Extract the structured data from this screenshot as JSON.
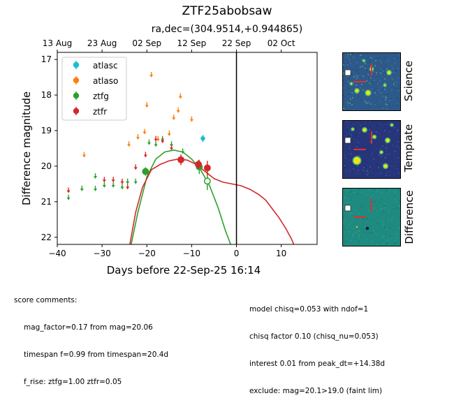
{
  "title": "ZTF25abobsaw",
  "subtitle": "ra,dec=(304.9514,+0.944865)",
  "chart_data": {
    "type": "scatter",
    "xlabel": "Days before 22-Sep-25 16:14",
    "ylabel": "Difference magnitude",
    "xlim": [
      -40,
      18
    ],
    "ylim": [
      22.2,
      16.8
    ],
    "x_ticks": [
      -40,
      -30,
      -20,
      -10,
      0,
      10
    ],
    "y_ticks": [
      17,
      18,
      19,
      20,
      21,
      22
    ],
    "top_axis_ticks": [
      {
        "label": "13 Aug",
        "x": -40
      },
      {
        "label": "23 Aug",
        "x": -30
      },
      {
        "label": "02 Sep",
        "x": -20
      },
      {
        "label": "12 Sep",
        "x": -10
      },
      {
        "label": "22 Sep",
        "x": 0
      },
      {
        "label": "02 Oct",
        "x": 10
      }
    ],
    "vline_x": 0,
    "legend_position": "upper-left",
    "series": [
      {
        "name": "atlasc",
        "color": "#17becf",
        "detections": [
          {
            "x": -7.5,
            "y": 19.22,
            "err": 0.1
          }
        ],
        "upper_limits": []
      },
      {
        "name": "atlaso",
        "color": "#ff7f0e",
        "detections": [],
        "upper_limits": [
          {
            "x": -34,
            "y": 19.6
          },
          {
            "x": -24,
            "y": 19.3
          },
          {
            "x": -22,
            "y": 19.1
          },
          {
            "x": -20.5,
            "y": 18.95
          },
          {
            "x": -20,
            "y": 18.2
          },
          {
            "x": -19,
            "y": 17.35
          },
          {
            "x": -17.5,
            "y": 19.15
          },
          {
            "x": -15,
            "y": 19.0
          },
          {
            "x": -14,
            "y": 18.55
          },
          {
            "x": -13,
            "y": 18.35
          },
          {
            "x": -12.5,
            "y": 17.95
          },
          {
            "x": -10,
            "y": 18.6
          }
        ]
      },
      {
        "name": "ztfg",
        "color": "#2ca02c",
        "detections": [
          {
            "x": -20.3,
            "y": 20.15,
            "err": 0.12
          },
          {
            "x": -8.3,
            "y": 20.02,
            "err": 0.2
          },
          {
            "x": -6.5,
            "y": 20.42,
            "err": 0.25,
            "open": true
          }
        ],
        "upper_limits": [
          {
            "x": -37.5,
            "y": 20.8
          },
          {
            "x": -34.5,
            "y": 20.55
          },
          {
            "x": -31.5,
            "y": 20.2
          },
          {
            "x": -31.5,
            "y": 20.55
          },
          {
            "x": -29.5,
            "y": 20.45
          },
          {
            "x": -27.5,
            "y": 20.45
          },
          {
            "x": -25.5,
            "y": 20.5
          },
          {
            "x": -24.3,
            "y": 20.35
          },
          {
            "x": -22.5,
            "y": 20.35
          },
          {
            "x": -19.5,
            "y": 19.25
          },
          {
            "x": -18,
            "y": 19.3
          },
          {
            "x": -16.5,
            "y": 19.15
          },
          {
            "x": -14.5,
            "y": 19.3
          },
          {
            "x": -12,
            "y": 19.5
          }
        ]
      },
      {
        "name": "ztfr",
        "color": "#d62728",
        "detections": [
          {
            "x": -12.4,
            "y": 19.82,
            "err": 0.15
          },
          {
            "x": -8.5,
            "y": 19.95,
            "err": 0.12
          },
          {
            "x": -6.5,
            "y": 20.05,
            "err": 0.2
          }
        ],
        "upper_limits": [
          {
            "x": -37.5,
            "y": 20.6
          },
          {
            "x": -29.5,
            "y": 20.3
          },
          {
            "x": -27.5,
            "y": 20.3
          },
          {
            "x": -25.5,
            "y": 20.35
          },
          {
            "x": -24.3,
            "y": 20.5
          },
          {
            "x": -22.5,
            "y": 19.95
          },
          {
            "x": -20.3,
            "y": 19.6
          },
          {
            "x": -18,
            "y": 19.15
          },
          {
            "x": -16.5,
            "y": 19.2
          },
          {
            "x": -14.5,
            "y": 19.4
          }
        ]
      }
    ],
    "model_curves": [
      {
        "name": "ztfg",
        "color": "#2ca02c",
        "points": [
          [
            -23.5,
            22.2
          ],
          [
            -22,
            21.3
          ],
          [
            -20,
            20.3
          ],
          [
            -18,
            19.8
          ],
          [
            -16,
            19.6
          ],
          [
            -14,
            19.55
          ],
          [
            -12,
            19.6
          ],
          [
            -10,
            19.8
          ],
          [
            -8,
            20.1
          ],
          [
            -6,
            20.55
          ],
          [
            -4,
            21.2
          ],
          [
            -2.5,
            21.8
          ],
          [
            -1.3,
            22.2
          ]
        ]
      },
      {
        "name": "ztfr",
        "color": "#d62728",
        "points": [
          [
            -23.8,
            22.2
          ],
          [
            -22.5,
            21.3
          ],
          [
            -21,
            20.6
          ],
          [
            -19,
            20.1
          ],
          [
            -17,
            19.95
          ],
          [
            -15,
            19.85
          ],
          [
            -13,
            19.8
          ],
          [
            -11,
            19.83
          ],
          [
            -9,
            19.95
          ],
          [
            -7,
            20.15
          ],
          [
            -5,
            20.35
          ],
          [
            -3,
            20.45
          ],
          [
            -1,
            20.5
          ],
          [
            1,
            20.55
          ],
          [
            3,
            20.65
          ],
          [
            5,
            20.8
          ],
          [
            6.5,
            20.95
          ],
          [
            8,
            21.2
          ],
          [
            9.5,
            21.45
          ],
          [
            11,
            21.75
          ],
          [
            12.3,
            22.05
          ],
          [
            12.8,
            22.2
          ]
        ]
      }
    ]
  },
  "stamp_labels": [
    "Science",
    "Template",
    "Difference"
  ],
  "comments_left": {
    "header": "score comments:",
    "lines": [
      "mag_factor=0.17 from mag=20.06",
      "timespan f=0.99 from timespan=20.4d",
      "f_rise: ztfg=1.00 ztfr=0.05"
    ]
  },
  "comments_right": {
    "lines": [
      "model chisq=0.053 with ndof=1",
      "chisq factor 0.10 (chisq_nu=0.053)",
      "interest 0.01 from peak_dt=+14.38d",
      "exclude: mag=20.1>19.0 (faint lim)"
    ]
  }
}
